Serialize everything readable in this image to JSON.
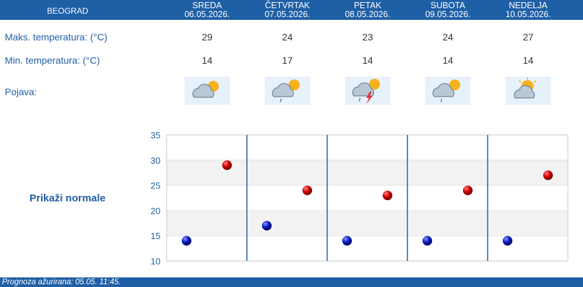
{
  "city": "BEOGRAD",
  "days": [
    {
      "name": "SREDA",
      "date": "06.05.2026.",
      "max": "29",
      "min": "14",
      "icon": "cloud-sun-icon"
    },
    {
      "name": "ČETVRTAK",
      "date": "07.05.2026.",
      "max": "24",
      "min": "17",
      "icon": "cloud-sun-rain-icon"
    },
    {
      "name": "PETAK",
      "date": "08.05.2026.",
      "max": "23",
      "min": "14",
      "icon": "cloud-sun-thunder-icon"
    },
    {
      "name": "SUBOTA",
      "date": "09.05.2026.",
      "max": "24",
      "min": "14",
      "icon": "cloud-sun-rain-icon"
    },
    {
      "name": "NEDELJA",
      "date": "10.05.2026.",
      "max": "27",
      "min": "14",
      "icon": "sun-cloud-icon"
    }
  ],
  "labels": {
    "max": "Maks. temperatura: (°C)",
    "min": "Min. temperatura: (°C)",
    "phenomenon": "Pojava:"
  },
  "normals_link": "Prikaži normale",
  "footer": "Prognoza ažurirana:  05.05. 11:45.",
  "colors": {
    "header": "#1f5fa6",
    "max_marker": "#cc0000",
    "min_marker": "#0000bb"
  },
  "chart_data": {
    "type": "scatter",
    "ylim": [
      10,
      35
    ],
    "yticks": [
      10,
      15,
      20,
      25,
      30,
      35
    ],
    "categories": [
      "06.05.2026.",
      "07.05.2026.",
      "08.05.2026.",
      "09.05.2026.",
      "10.05.2026."
    ],
    "series": [
      {
        "values": [
          29,
          24,
          23,
          24,
          27
        ]
      },
      {
        "values": [
          14,
          17,
          14,
          14,
          14
        ]
      }
    ]
  }
}
